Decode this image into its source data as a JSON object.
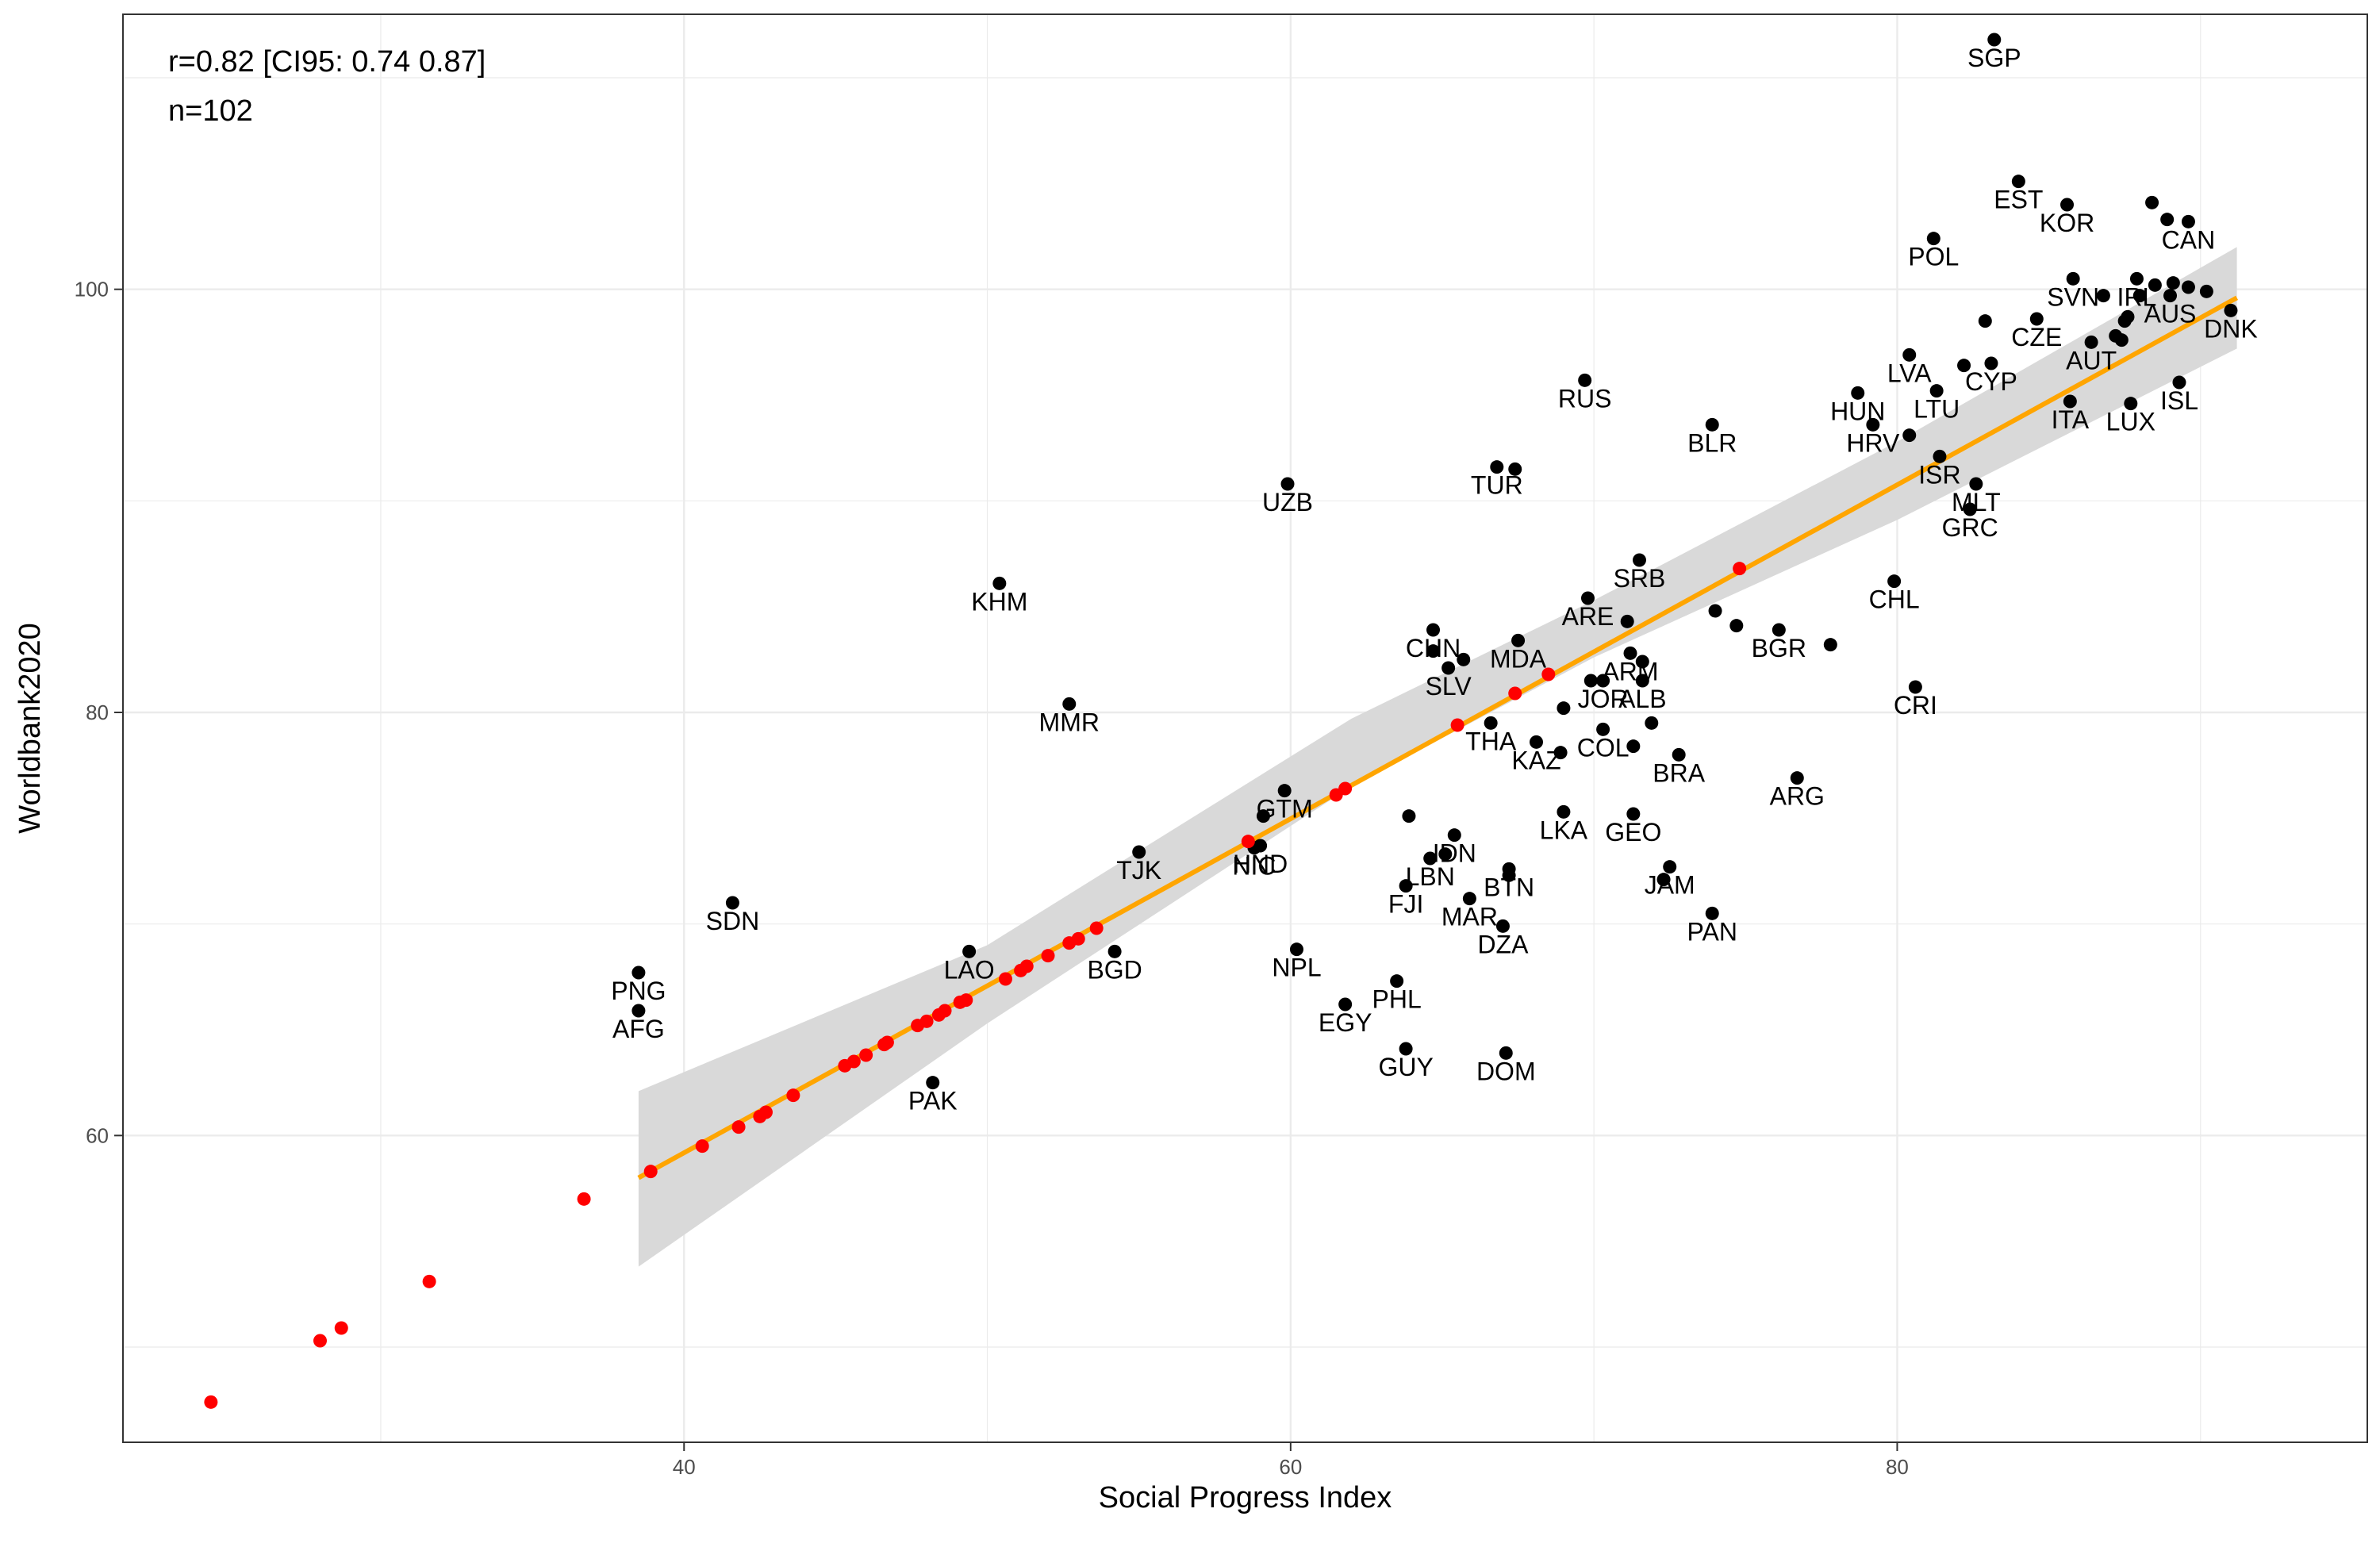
{
  "chart_data": {
    "type": "scatter",
    "xlabel": "Social Progress Index",
    "ylabel": "Worldbank2020",
    "xlim": [
      21.5,
      95.5
    ],
    "ylim": [
      45.5,
      113
    ],
    "x_ticks": [
      40,
      60,
      80
    ],
    "y_ticks": [
      60,
      80,
      100
    ],
    "x_minor": [
      30,
      50,
      70,
      90
    ],
    "y_minor": [
      50,
      70,
      90,
      110
    ],
    "grid": true,
    "annotations": [
      "r=0.82 [CI95: 0.74 0.87]",
      "n=102"
    ],
    "colors": {
      "observed": "#000000",
      "predicted": "#ff0000",
      "fit_line": "#ffa500",
      "confidence_band": "#d9d9d9",
      "grid": "#ebebeb",
      "panel_border": "#333333"
    },
    "regression": {
      "x_start": 38.5,
      "y_start": 58.0,
      "x_end": 91.2,
      "y_end": 99.6,
      "band": [
        [
          38.5,
          53.8,
          62.1
        ],
        [
          50,
          65.3,
          69.0
        ],
        [
          62,
          76.5,
          79.7
        ],
        [
          70,
          82.6,
          85.3
        ],
        [
          80,
          89.1,
          92.8
        ],
        [
          91.2,
          97.2,
          102.0
        ]
      ]
    },
    "observed": [
      {
        "x": 83.2,
        "y": 111.8,
        "label": "SGP"
      },
      {
        "x": 84.0,
        "y": 105.1,
        "label": "EST"
      },
      {
        "x": 85.6,
        "y": 104.0,
        "label": "KOR"
      },
      {
        "x": 88.4,
        "y": 104.1,
        "label": ""
      },
      {
        "x": 88.9,
        "y": 103.3,
        "label": ""
      },
      {
        "x": 89.6,
        "y": 103.2,
        "label": "CAN"
      },
      {
        "x": 81.2,
        "y": 102.4,
        "label": "POL"
      },
      {
        "x": 85.8,
        "y": 100.5,
        "label": "SVN"
      },
      {
        "x": 86.8,
        "y": 99.7,
        "label": ""
      },
      {
        "x": 87.9,
        "y": 100.5,
        "label": "IRL"
      },
      {
        "x": 88.5,
        "y": 100.2,
        "label": ""
      },
      {
        "x": 89.1,
        "y": 100.3,
        "label": ""
      },
      {
        "x": 89.6,
        "y": 100.1,
        "label": ""
      },
      {
        "x": 90.2,
        "y": 99.9,
        "label": ""
      },
      {
        "x": 91.0,
        "y": 99.0,
        "label": "DNK"
      },
      {
        "x": 88.0,
        "y": 99.7,
        "label": ""
      },
      {
        "x": 89.0,
        "y": 99.7,
        "label": "AUS"
      },
      {
        "x": 87.6,
        "y": 98.7,
        "label": ""
      },
      {
        "x": 87.5,
        "y": 98.5,
        "label": ""
      },
      {
        "x": 87.2,
        "y": 97.8,
        "label": ""
      },
      {
        "x": 87.4,
        "y": 97.6,
        "label": ""
      },
      {
        "x": 86.4,
        "y": 97.5,
        "label": "AUT"
      },
      {
        "x": 82.9,
        "y": 98.5,
        "label": ""
      },
      {
        "x": 84.6,
        "y": 98.6,
        "label": "CZE"
      },
      {
        "x": 83.1,
        "y": 96.5,
        "label": "CYP"
      },
      {
        "x": 80.4,
        "y": 96.9,
        "label": "LVA"
      },
      {
        "x": 78.7,
        "y": 95.1,
        "label": "HUN"
      },
      {
        "x": 81.3,
        "y": 95.2,
        "label": "LTU"
      },
      {
        "x": 79.2,
        "y": 93.6,
        "label": "HRV"
      },
      {
        "x": 80.4,
        "y": 93.1,
        "label": ""
      },
      {
        "x": 85.7,
        "y": 94.7,
        "label": "ITA"
      },
      {
        "x": 87.7,
        "y": 94.6,
        "label": "LUX"
      },
      {
        "x": 89.3,
        "y": 95.6,
        "label": "ISL"
      },
      {
        "x": 81.4,
        "y": 92.1,
        "label": "ISR"
      },
      {
        "x": 82.6,
        "y": 90.8,
        "label": "MLT"
      },
      {
        "x": 82.4,
        "y": 89.6,
        "label": "GRC"
      },
      {
        "x": 69.7,
        "y": 95.7,
        "label": "RUS"
      },
      {
        "x": 73.9,
        "y": 93.6,
        "label": "BLR"
      },
      {
        "x": 66.8,
        "y": 91.6,
        "label": "TUR"
      },
      {
        "x": 67.4,
        "y": 91.5,
        "label": ""
      },
      {
        "x": 59.9,
        "y": 90.8,
        "label": "UZB"
      },
      {
        "x": 50.4,
        "y": 86.1,
        "label": "KHM"
      },
      {
        "x": 71.5,
        "y": 87.2,
        "label": "SRB"
      },
      {
        "x": 79.9,
        "y": 86.2,
        "label": "CHL"
      },
      {
        "x": 69.8,
        "y": 85.4,
        "label": "ARE"
      },
      {
        "x": 71.1,
        "y": 84.3,
        "label": ""
      },
      {
        "x": 74.0,
        "y": 84.8,
        "label": ""
      },
      {
        "x": 74.7,
        "y": 84.1,
        "label": ""
      },
      {
        "x": 76.1,
        "y": 83.9,
        "label": "BGR"
      },
      {
        "x": 77.8,
        "y": 83.2,
        "label": ""
      },
      {
        "x": 71.2,
        "y": 82.8,
        "label": "ARM"
      },
      {
        "x": 67.5,
        "y": 83.4,
        "label": "MDA"
      },
      {
        "x": 64.7,
        "y": 83.9,
        "label": "CHN"
      },
      {
        "x": 64.7,
        "y": 82.9,
        "label": ""
      },
      {
        "x": 65.7,
        "y": 82.5,
        "label": ""
      },
      {
        "x": 65.2,
        "y": 82.1,
        "label": "SLV"
      },
      {
        "x": 71.6,
        "y": 82.4,
        "label": ""
      },
      {
        "x": 71.6,
        "y": 81.5,
        "label": "ALB"
      },
      {
        "x": 70.3,
        "y": 81.5,
        "label": "JOR"
      },
      {
        "x": 69.9,
        "y": 81.5,
        "label": ""
      },
      {
        "x": 69.0,
        "y": 80.2,
        "label": ""
      },
      {
        "x": 80.6,
        "y": 81.2,
        "label": "CRI"
      },
      {
        "x": 66.6,
        "y": 79.5,
        "label": "THA"
      },
      {
        "x": 71.9,
        "y": 79.5,
        "label": ""
      },
      {
        "x": 70.3,
        "y": 79.2,
        "label": "COL"
      },
      {
        "x": 68.1,
        "y": 78.6,
        "label": "KAZ"
      },
      {
        "x": 68.9,
        "y": 78.1,
        "label": ""
      },
      {
        "x": 71.3,
        "y": 78.4,
        "label": ""
      },
      {
        "x": 72.8,
        "y": 78.0,
        "label": "BRA"
      },
      {
        "x": 76.7,
        "y": 76.9,
        "label": "ARG"
      },
      {
        "x": 59.8,
        "y": 76.3,
        "label": "GTM"
      },
      {
        "x": 59.1,
        "y": 75.1,
        "label": ""
      },
      {
        "x": 63.9,
        "y": 75.1,
        "label": ""
      },
      {
        "x": 69.0,
        "y": 75.3,
        "label": "LKA"
      },
      {
        "x": 71.3,
        "y": 75.2,
        "label": "GEO"
      },
      {
        "x": 59.0,
        "y": 73.7,
        "label": "HND"
      },
      {
        "x": 58.8,
        "y": 73.6,
        "label": "NIC"
      },
      {
        "x": 55.0,
        "y": 73.4,
        "label": "TJK"
      },
      {
        "x": 65.4,
        "y": 74.2,
        "label": "IDN"
      },
      {
        "x": 65.1,
        "y": 73.3,
        "label": ""
      },
      {
        "x": 64.6,
        "y": 73.1,
        "label": "LBN"
      },
      {
        "x": 67.2,
        "y": 72.6,
        "label": "BTN"
      },
      {
        "x": 67.2,
        "y": 72.3,
        "label": ""
      },
      {
        "x": 72.5,
        "y": 72.7,
        "label": "JAM"
      },
      {
        "x": 72.3,
        "y": 72.1,
        "label": ""
      },
      {
        "x": 63.8,
        "y": 71.8,
        "label": "FJI"
      },
      {
        "x": 65.9,
        "y": 71.2,
        "label": "MAR"
      },
      {
        "x": 67.0,
        "y": 69.9,
        "label": "DZA"
      },
      {
        "x": 73.9,
        "y": 70.5,
        "label": "PAN"
      },
      {
        "x": 41.6,
        "y": 71.0,
        "label": "SDN"
      },
      {
        "x": 38.5,
        "y": 67.7,
        "label": "PNG"
      },
      {
        "x": 38.5,
        "y": 65.9,
        "label": "AFG"
      },
      {
        "x": 49.4,
        "y": 68.7,
        "label": "LAO"
      },
      {
        "x": 54.2,
        "y": 68.7,
        "label": "BGD"
      },
      {
        "x": 60.2,
        "y": 68.8,
        "label": "NPL"
      },
      {
        "x": 63.5,
        "y": 67.3,
        "label": "PHL"
      },
      {
        "x": 61.8,
        "y": 66.2,
        "label": "EGY"
      },
      {
        "x": 63.8,
        "y": 64.1,
        "label": "GUY"
      },
      {
        "x": 67.1,
        "y": 63.9,
        "label": "DOM"
      },
      {
        "x": 48.2,
        "y": 62.5,
        "label": "PAK"
      },
      {
        "x": 52.7,
        "y": 80.4,
        "label": "MMR"
      },
      {
        "x": 82.2,
        "y": 96.4,
        "label": ""
      }
    ],
    "predicted": [
      {
        "x": 24.4,
        "y": 47.4
      },
      {
        "x": 28.0,
        "y": 50.3
      },
      {
        "x": 28.7,
        "y": 50.9
      },
      {
        "x": 31.6,
        "y": 53.1
      },
      {
        "x": 36.7,
        "y": 57.0
      },
      {
        "x": 38.9,
        "y": 58.3
      },
      {
        "x": 40.6,
        "y": 59.5
      },
      {
        "x": 41.8,
        "y": 60.4
      },
      {
        "x": 42.5,
        "y": 60.9
      },
      {
        "x": 42.7,
        "y": 61.1
      },
      {
        "x": 43.6,
        "y": 61.9
      },
      {
        "x": 45.3,
        "y": 63.3
      },
      {
        "x": 45.6,
        "y": 63.5
      },
      {
        "x": 46.0,
        "y": 63.8
      },
      {
        "x": 46.6,
        "y": 64.3
      },
      {
        "x": 46.7,
        "y": 64.4
      },
      {
        "x": 47.7,
        "y": 65.2
      },
      {
        "x": 48.0,
        "y": 65.4
      },
      {
        "x": 48.4,
        "y": 65.7
      },
      {
        "x": 48.6,
        "y": 65.9
      },
      {
        "x": 49.1,
        "y": 66.3
      },
      {
        "x": 49.3,
        "y": 66.4
      },
      {
        "x": 50.6,
        "y": 67.4
      },
      {
        "x": 51.1,
        "y": 67.8
      },
      {
        "x": 51.3,
        "y": 68.0
      },
      {
        "x": 52.0,
        "y": 68.5
      },
      {
        "x": 52.7,
        "y": 69.1
      },
      {
        "x": 53.0,
        "y": 69.3
      },
      {
        "x": 53.6,
        "y": 69.8
      },
      {
        "x": 58.6,
        "y": 73.9
      },
      {
        "x": 61.5,
        "y": 76.1
      },
      {
        "x": 61.8,
        "y": 76.4
      },
      {
        "x": 65.5,
        "y": 79.4
      },
      {
        "x": 67.4,
        "y": 80.9
      },
      {
        "x": 68.5,
        "y": 81.8
      },
      {
        "x": 74.8,
        "y": 86.8
      }
    ]
  }
}
